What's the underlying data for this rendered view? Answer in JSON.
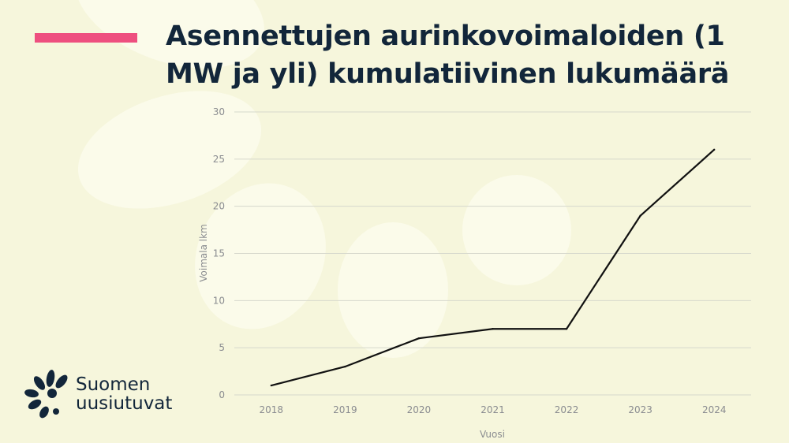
{
  "title": "Asennettujen aurinkovoimaloiden (1 MW ja yli) kumulatiivinen lukumäärä",
  "logo": {
    "line1": "Suomen",
    "line2": "uusiutuvat"
  },
  "colors": {
    "background": "#f6f6dc",
    "accent": "#ee4f7f",
    "title": "#12263a",
    "line": "#111111",
    "grid": "#d6d8cc",
    "axis_text": "#8a8c90"
  },
  "chart_data": {
    "type": "line",
    "title": "",
    "xlabel": "Vuosi",
    "ylabel": "Voimala lkm",
    "categories": [
      "2018",
      "2019",
      "2020",
      "2021",
      "2022",
      "2023",
      "2024"
    ],
    "series": [
      {
        "values": [
          1,
          3,
          6,
          7,
          7,
          19,
          26
        ]
      }
    ],
    "ylim": [
      0,
      30
    ],
    "yticks": [
      0,
      5,
      10,
      15,
      20,
      25,
      30
    ],
    "grid": true,
    "legend": "none"
  }
}
